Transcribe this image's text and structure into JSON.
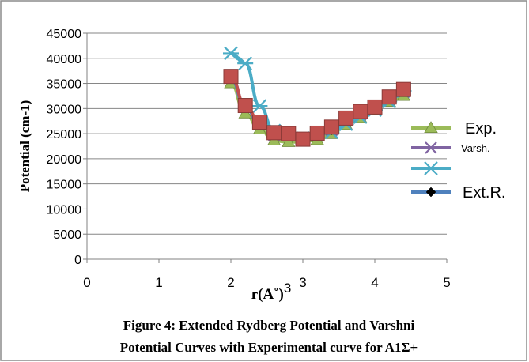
{
  "chart_data": {
    "type": "line",
    "ylabel": "Potential (cm-1)",
    "xlabel": "r(A˚)",
    "xlabel_exponent": "3",
    "xlim": [
      0,
      5
    ],
    "ylim": [
      0,
      45000
    ],
    "x_ticks": [
      "0",
      "1",
      "2",
      "3",
      "4",
      "5"
    ],
    "y_ticks": [
      "0",
      "5000",
      "10000",
      "15000",
      "20000",
      "25000",
      "30000",
      "35000",
      "40000",
      "45000"
    ],
    "grid": true,
    "legend_position": "right",
    "caption_lines": [
      "Figure 4:  Extended Rydberg Potential and Varshni",
      "Potential  Curves  with Experimental curve for A1Σ+"
    ],
    "x": [
      2.0,
      2.2,
      2.4,
      2.6,
      2.8,
      3.0,
      3.2,
      3.4,
      3.6,
      3.8,
      4.0,
      4.2,
      4.4
    ],
    "series": [
      {
        "name": "Exp.",
        "color": "#9BBB59",
        "marker": "triangle",
        "values": [
          35000,
          29000,
          25800,
          23600,
          23300,
          23400,
          23700,
          24900,
          26700,
          28100,
          29700,
          31300,
          32500
        ]
      },
      {
        "name": "Varsh.",
        "color": "#8064A2",
        "marker": "x",
        "values": [
          36500,
          30500,
          27000,
          24700,
          24600,
          23900,
          24700,
          25700,
          27600,
          28800,
          30000,
          31900,
          33300
        ]
      },
      {
        "name": "",
        "color": "#4BACC6",
        "marker": "asterisk",
        "values": [
          41000,
          39000,
          30500,
          25600,
          25000,
          24100,
          24800,
          25300,
          26900,
          28300,
          29700,
          31400,
          33500
        ]
      },
      {
        "name": "Ext.R.",
        "color": "#4F81BD",
        "marker": "diamond",
        "values": [
          36000,
          30200,
          27000,
          25200,
          24800,
          23800,
          25000,
          25700,
          27800,
          29100,
          30400,
          32100,
          33700
        ]
      },
      {
        "name": "",
        "color": "#C0504D",
        "marker": "square",
        "values": [
          36400,
          30600,
          27300,
          25200,
          25000,
          23900,
          25100,
          26300,
          28100,
          29400,
          30300,
          32300,
          33800
        ]
      }
    ]
  }
}
